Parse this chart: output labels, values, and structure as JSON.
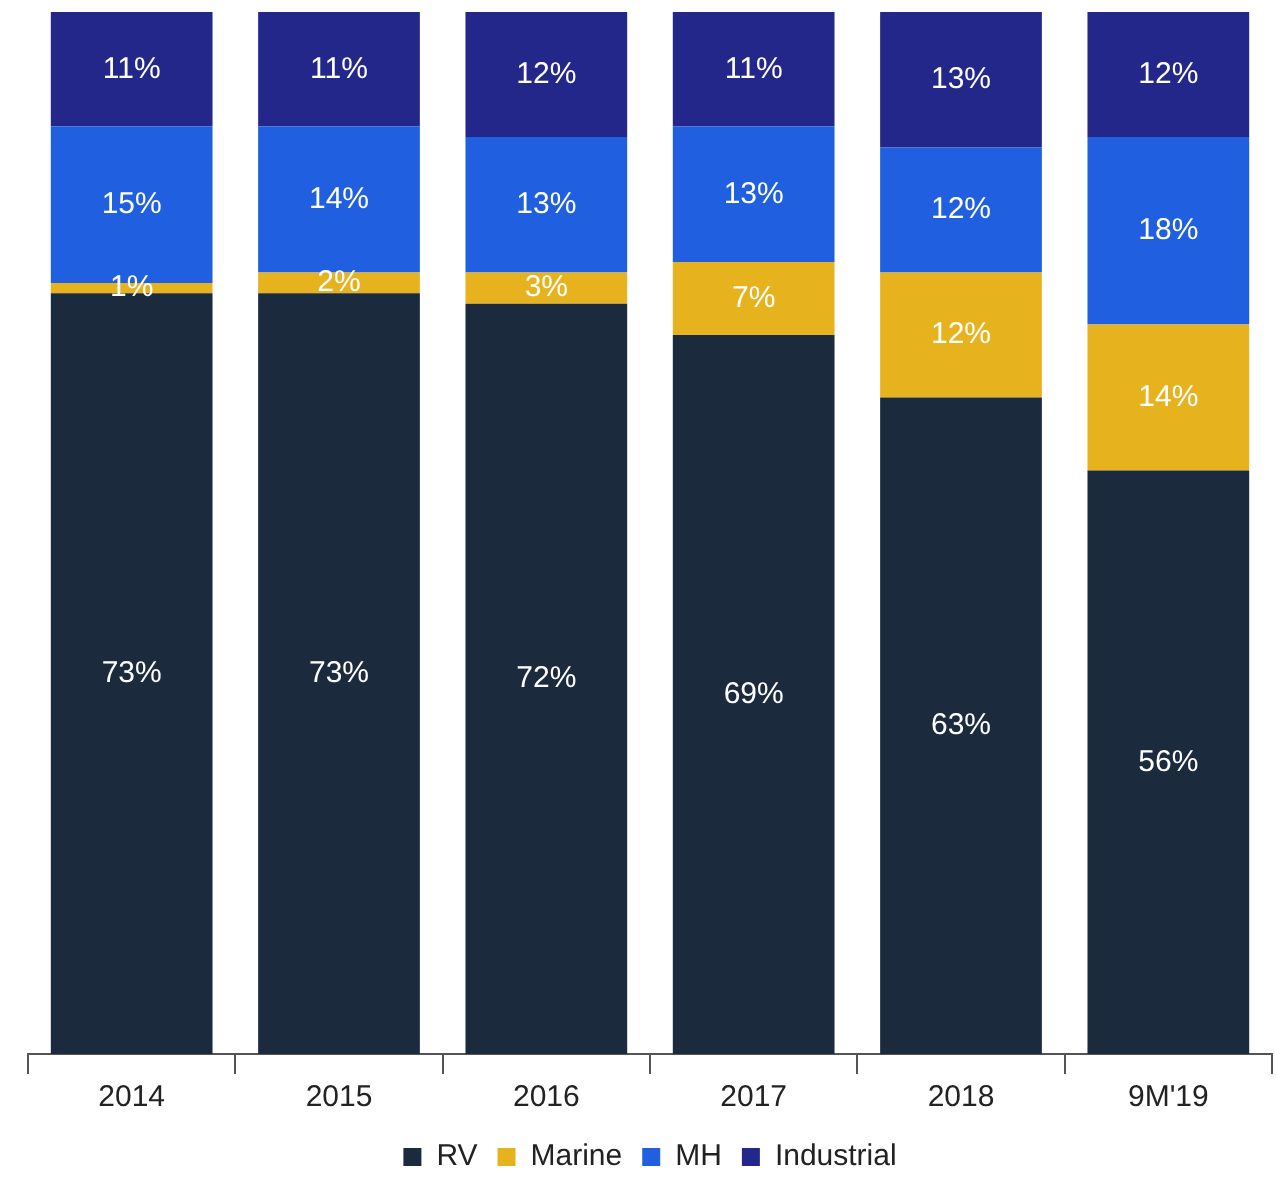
{
  "chart_data": {
    "type": "bar",
    "stacked": true,
    "categories": [
      "2014",
      "2015",
      "2016",
      "2017",
      "2018",
      "9M'19"
    ],
    "series": [
      {
        "name": "RV",
        "color": "#1c2a3e",
        "values": [
          73,
          73,
          72,
          69,
          63,
          56
        ],
        "value_labels": [
          "73%",
          "73%",
          "72%",
          "69%",
          "63%",
          "56%"
        ]
      },
      {
        "name": "Marine",
        "color": "#e6b31e",
        "values": [
          1,
          2,
          3,
          7,
          12,
          14
        ],
        "value_labels": [
          "1%",
          "2%",
          "3%",
          "7%",
          "12%",
          "14%"
        ]
      },
      {
        "name": "MH",
        "color": "#1f5fe0",
        "values": [
          15,
          14,
          13,
          13,
          12,
          18
        ],
        "value_labels": [
          "15%",
          "14%",
          "13%",
          "13%",
          "12%",
          "18%"
        ]
      },
      {
        "name": "Industrial",
        "color": "#24278a",
        "values": [
          11,
          11,
          12,
          11,
          13,
          12
        ],
        "value_labels": [
          "11%",
          "11%",
          "12%",
          "11%",
          "13%",
          "12%"
        ]
      }
    ],
    "tick_labels": "x",
    "legend": "bottom",
    "grid": false
  }
}
